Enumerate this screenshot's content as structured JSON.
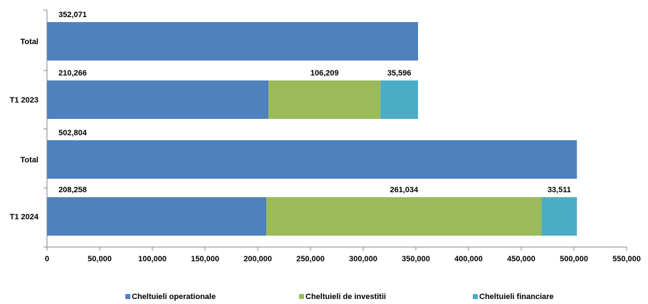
{
  "chart_data": {
    "type": "bar",
    "orientation": "horizontal",
    "stacked": true,
    "categories": [
      "Total",
      "T1 2023",
      "Total",
      "T1 2024"
    ],
    "series": [
      {
        "name": "Cheltuieli operationale",
        "values": [
          352071,
          210266,
          502804,
          208258
        ],
        "color": "#4F81BD"
      },
      {
        "name": "Cheltuieli de investitii",
        "values": [
          null,
          106209,
          null,
          261034
        ],
        "color": "#9BBB59"
      },
      {
        "name": "Cheltuieli financiare",
        "values": [
          null,
          35596,
          null,
          33511
        ],
        "color": "#4BACC6"
      }
    ],
    "data_labels": [
      [
        "352,071",
        "210,266",
        "502,804",
        "208,258"
      ],
      [
        "",
        "106,209",
        "",
        "261,034"
      ],
      [
        "",
        "35,596",
        "",
        "33,511"
      ]
    ],
    "x_ticks": [
      "0",
      "50,000",
      "100,000",
      "150,000",
      "200,000",
      "250,000",
      "300,000",
      "350,000",
      "400,000",
      "450,000",
      "500,000",
      "550,000"
    ],
    "xlim": [
      0,
      550000
    ],
    "grid": false,
    "legend_position": "bottom"
  }
}
